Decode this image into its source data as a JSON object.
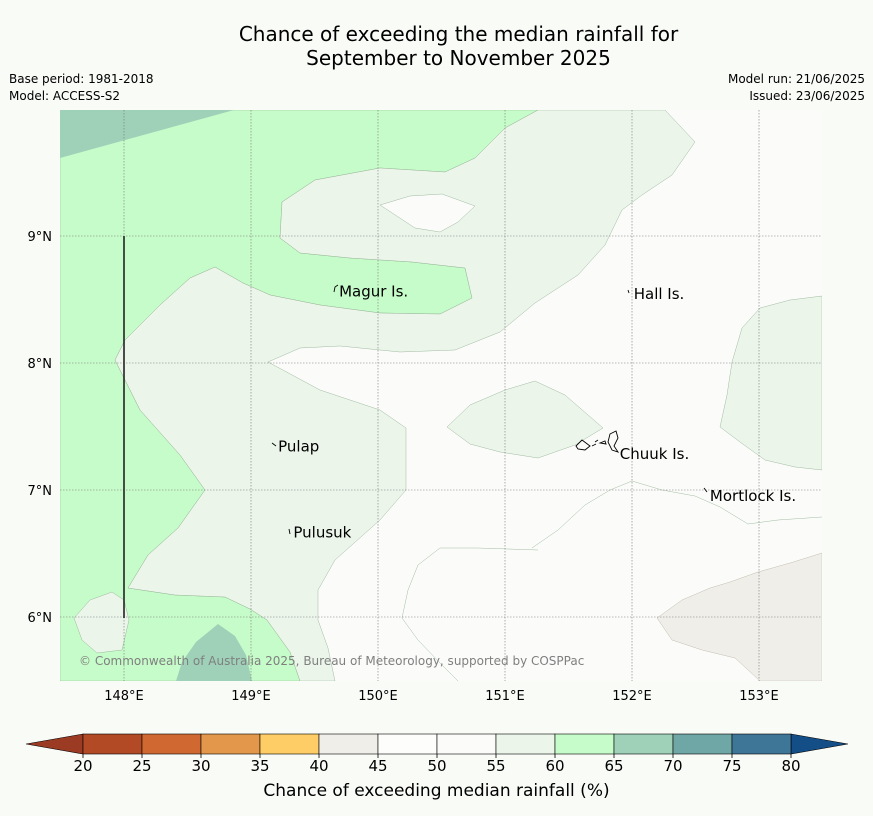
{
  "title_line1": "Chance of exceeding the median rainfall for",
  "title_line2": "September to November 2025",
  "meta_left": [
    "Base period: 1981-2018",
    "Model: ACCESS-S2"
  ],
  "meta_right": [
    "Model run: 21/06/2025",
    "Issued: 23/06/2025"
  ],
  "copyright": "© Commonwealth of Australia 2025, Bureau of Meteorology, supported by COSPPac",
  "lon_labels": [
    {
      "lon": 148,
      "text": "148°E"
    },
    {
      "lon": 149,
      "text": "149°E"
    },
    {
      "lon": 150,
      "text": "150°E"
    },
    {
      "lon": 151,
      "text": "151°E"
    },
    {
      "lon": 152,
      "text": "152°E"
    },
    {
      "lon": 153,
      "text": "153°E"
    }
  ],
  "lat_labels": [
    {
      "lat": 9,
      "text": "9°N"
    },
    {
      "lat": 8,
      "text": "8°N"
    },
    {
      "lat": 7,
      "text": "7°N"
    },
    {
      "lat": 6,
      "text": "6°N"
    }
  ],
  "places": [
    {
      "name": "Magur Is.",
      "lon": 149.67,
      "lat": 8.58
    },
    {
      "name": "Hall Is.",
      "lon": 151.99,
      "lat": 8.56
    },
    {
      "name": "Pulap",
      "lon": 149.19,
      "lat": 7.36
    },
    {
      "name": "Chuuk Is.",
      "lon": 151.88,
      "lat": 7.3
    },
    {
      "name": "Mortlock Is.",
      "lon": 152.59,
      "lat": 6.97
    },
    {
      "name": "Pulusuk",
      "lon": 149.31,
      "lat": 6.68
    }
  ],
  "colorbar": {
    "title": "Chance of exceeding median rainfall (%)",
    "ticks": [
      "20",
      "25",
      "30",
      "35",
      "40",
      "45",
      "50",
      "55",
      "60",
      "65",
      "70",
      "75",
      "80"
    ],
    "colors": [
      "#b14a25",
      "#cf6931",
      "#e3974b",
      "#fecd66",
      "#f0eee8",
      "#fdfdfc",
      "#fbfcfa",
      "#ebf5ea",
      "#c6fcc9",
      "#9ed1b8",
      "#6fa7a6",
      "#3e7698"
    ],
    "under_color": "#9c3b23",
    "over_color": "#134e86"
  },
  "colors": {
    "c40_45": "#f0eee8",
    "c45_55": "#fbfcfa",
    "c55_60": "#ebf5ea",
    "c60_65": "#c6fcc9",
    "c65_70": "#9ed1b8"
  }
}
